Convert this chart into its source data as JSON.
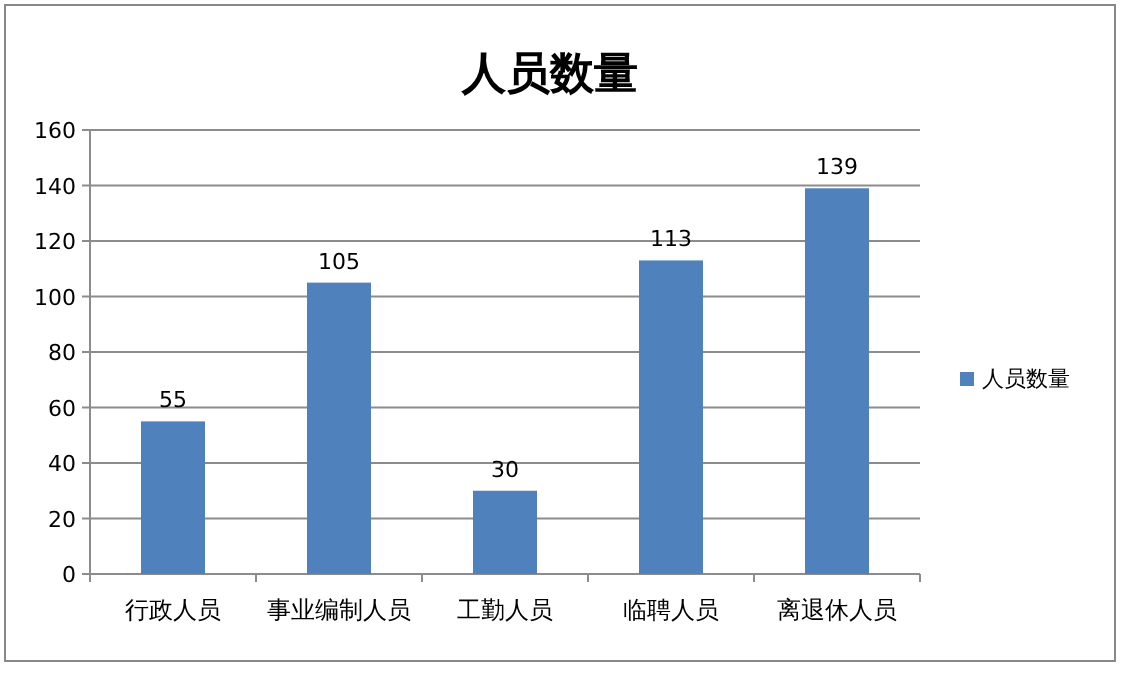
{
  "chart_data": {
    "type": "bar",
    "title": "人员数量",
    "categories": [
      "行政人员",
      "事业编制人员",
      "工勤人员",
      "临聘人员",
      "离退休人员"
    ],
    "series": [
      {
        "name": "人员数量",
        "color": "#4f81bd",
        "values": [
          55,
          105,
          30,
          113,
          139
        ]
      }
    ],
    "ylim": [
      0,
      160
    ],
    "yticks": [
      0,
      20,
      40,
      60,
      80,
      100,
      120,
      140,
      160
    ],
    "grid": "y",
    "legend": "right",
    "data_labels": true
  }
}
